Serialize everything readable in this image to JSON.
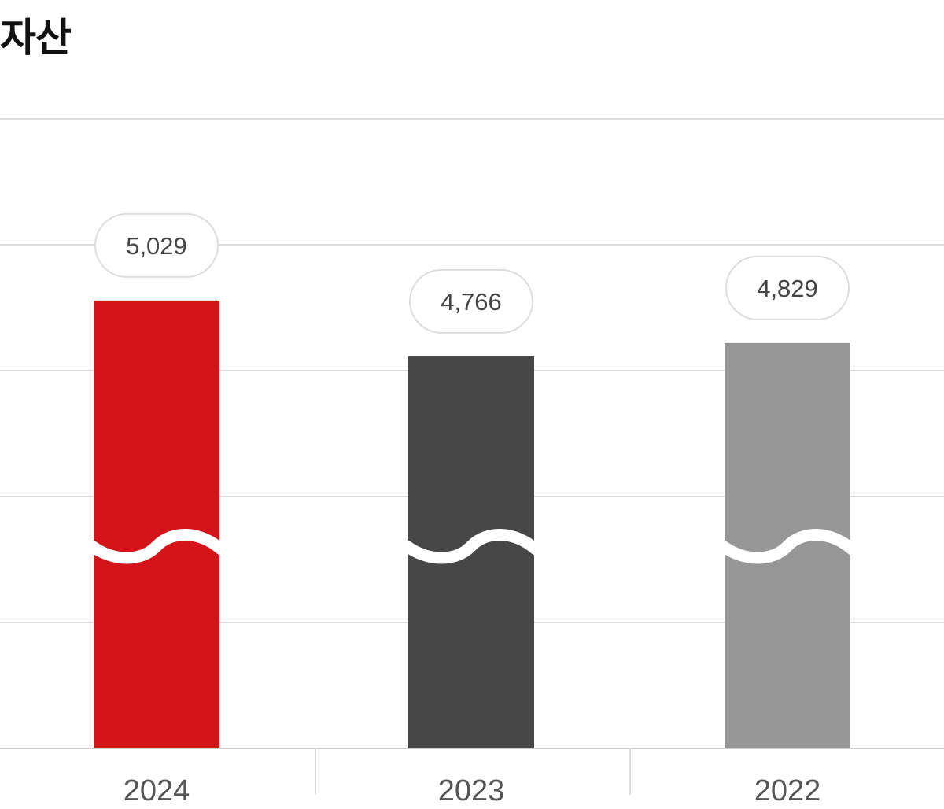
{
  "chart_data": {
    "type": "bar",
    "title": "자산",
    "categories": [
      "2024",
      "2023",
      "2022"
    ],
    "values": [
      5029,
      4766,
      4829
    ],
    "value_labels": [
      "5,029",
      "4,766",
      "4,829"
    ],
    "colors": [
      "#d5141a",
      "#474747",
      "#969696"
    ],
    "axis_break": true,
    "grid": true,
    "legend": "none"
  }
}
